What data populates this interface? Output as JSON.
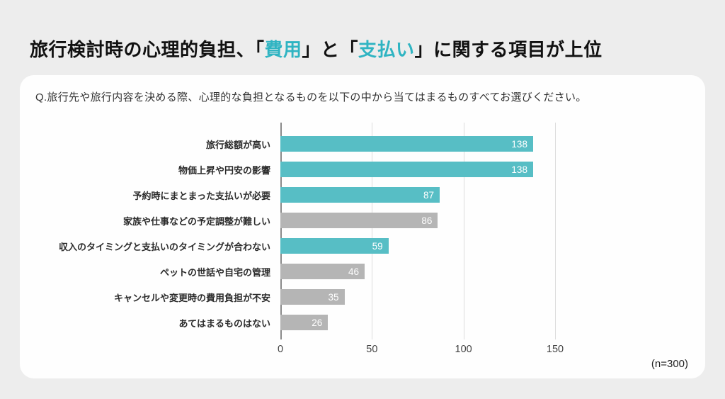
{
  "title": {
    "segments": [
      {
        "text": "旅行検討時の心理的負担、「",
        "accent": false
      },
      {
        "text": "費用",
        "accent": true
      },
      {
        "text": "」と「",
        "accent": false
      },
      {
        "text": "支払い",
        "accent": true
      },
      {
        "text": "」に関する項目が上位",
        "accent": false
      }
    ]
  },
  "card": {
    "question": "Q.旅行先や旅行内容を決める際、心理的な負担となるものを以下の中から当てはまるものすべてお選びください。",
    "sample_size": "(n=300)"
  },
  "colors": {
    "title_text": "#111111",
    "accent_text": "#2fb4c2",
    "accent_bar": "#57bec5",
    "gray_bar": "#b5b5b5",
    "axis_line": "#8a8a8a",
    "gridline": "#dcdcdc",
    "value_label": "#ffffff",
    "page_background": "#ededed",
    "card_background": "#fefefe"
  },
  "chart_data": {
    "type": "bar",
    "orientation": "horizontal",
    "categories": [
      "旅行総額が高い",
      "物価上昇や円安の影響",
      "予約時にまとまった支払いが必要",
      "家族や仕事などの予定調整が難しい",
      "収入のタイミングと支払いのタイミングが合わない",
      "ペットの世話や自宅の管理",
      "キャンセルや変更時の費用負担が不安",
      "あてはまるものはない"
    ],
    "values": [
      138,
      138,
      87,
      86,
      59,
      46,
      35,
      26
    ],
    "bar_colors": [
      "accent",
      "accent",
      "accent",
      "gray",
      "accent",
      "gray",
      "gray",
      "gray"
    ],
    "xticks": [
      0,
      50,
      100,
      150
    ],
    "xlim": [
      0,
      150
    ],
    "grid": "vertical-only",
    "value_labels": "inside-end",
    "title": "",
    "xlabel": "",
    "ylabel": ""
  }
}
